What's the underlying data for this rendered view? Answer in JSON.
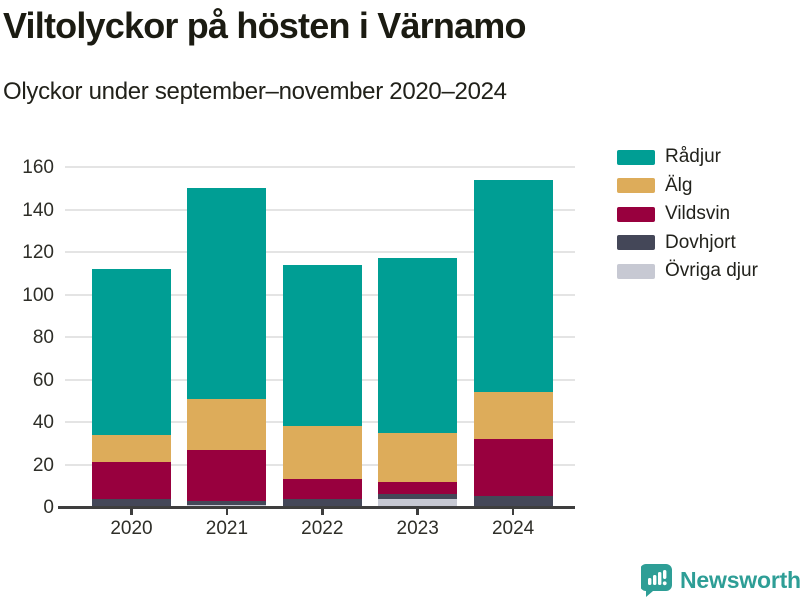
{
  "header": {
    "title": "Viltolyckor på hösten i Värnamo",
    "subtitle": "Olyckor under september–november 2020–2024"
  },
  "chart_data": {
    "type": "bar",
    "stacked": true,
    "title": "Viltolyckor på hösten i Värnamo",
    "subtitle": "Olyckor under september–november 2020–2024",
    "categories": [
      "2020",
      "2021",
      "2022",
      "2023",
      "2024"
    ],
    "series": [
      {
        "name": "Rådjur",
        "color": "#009e94",
        "values": [
          78,
          99,
          76,
          82,
          100
        ]
      },
      {
        "name": "Älg",
        "color": "#ddac5a",
        "values": [
          13,
          24,
          25,
          23,
          22
        ]
      },
      {
        "name": "Vildsvin",
        "color": "#98003e",
        "values": [
          17,
          24,
          9,
          6,
          27
        ]
      },
      {
        "name": "Dovhjort",
        "color": "#444758",
        "values": [
          4,
          2,
          4,
          2,
          5
        ]
      },
      {
        "name": "Övriga djur",
        "color": "#c7c9d3",
        "values": [
          0,
          1,
          0,
          4,
          0
        ]
      }
    ],
    "totals": [
      112,
      150,
      114,
      117,
      154
    ],
    "xlabel": "",
    "ylabel": "",
    "ylim": [
      0,
      160
    ],
    "yticks": [
      0,
      20,
      40,
      60,
      80,
      100,
      120,
      140,
      160
    ],
    "grid": true,
    "legend_position": "right"
  },
  "colors": {
    "axis": "#3e3e3e",
    "gridline": "#e4e4e4",
    "text": "#22221c",
    "brand_teal": "#2e9e96"
  },
  "footer": {
    "brand": "Newsworthy"
  }
}
